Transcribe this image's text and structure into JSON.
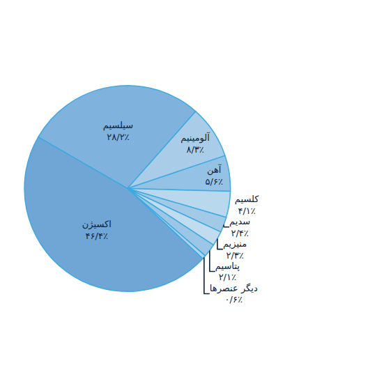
{
  "chart_data": {
    "type": "pie",
    "categories": [
      "سیلسیم",
      "آلومینیم",
      "آهن",
      "کلسیم",
      "سدیم",
      "منیزیم",
      "پتاسیم",
      "دیگر عنصرها",
      "اکسیژن"
    ],
    "values": [
      28.2,
      8.3,
      5.6,
      4.1,
      2.4,
      2.3,
      2.1,
      0.6,
      46.4
    ],
    "value_labels": [
      "۲۸/۲٪",
      "۸/۳٪",
      "۵/۶٪",
      "۴/۱٪",
      "۲/۴٪",
      "۲/۳٪",
      "۲/۱٪",
      "۰/۶٪",
      "۴۶/۴٪"
    ],
    "colors": [
      "#7fb2dc",
      "#a9cde8",
      "#93c2e4",
      "#b8d8ee",
      "#a2c9e6",
      "#c2dcef",
      "#9cc6e6",
      "#b0d2ec",
      "#6fa6d6"
    ],
    "data_labels": true
  }
}
